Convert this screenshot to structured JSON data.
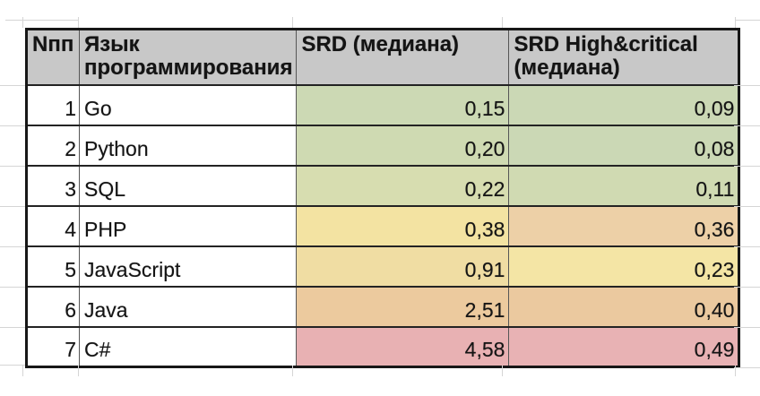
{
  "colors": {
    "header_bg": "#c8c8c8",
    "text": "#141414",
    "border_dark": "#171717",
    "border_inner_vertical": "#565656",
    "grid_faint": "#d5d5d5",
    "scale_green": "#ccd9b4",
    "scale_yellow": "#f3e3a2",
    "scale_orange": "#ecca9e",
    "scale_red": "#e8b1b3"
  },
  "table": {
    "columns": [
      {
        "label": "Nпп"
      },
      {
        "label": "Язык программирования"
      },
      {
        "label": "SRD (медиана)"
      },
      {
        "label": "SRD High&critical (медиана)"
      }
    ],
    "rows": [
      {
        "num": "1",
        "language": "Go",
        "srd": "0,15",
        "srd_color": "#ccd9b4",
        "srd_hc": "0,09",
        "srd_hc_color": "#cbd8b5"
      },
      {
        "num": "2",
        "language": "Python",
        "srd": "0,20",
        "srd_color": "#cfdab2",
        "srd_hc": "0,08",
        "srd_hc_color": "#cbd8b5"
      },
      {
        "num": "3",
        "language": "SQL",
        "srd": "0,22",
        "srd_color": "#d7ddb0",
        "srd_hc": "0,11",
        "srd_hc_color": "#d0dab2"
      },
      {
        "num": "4",
        "language": "PHP",
        "srd": "0,38",
        "srd_color": "#f3e3a2",
        "srd_hc": "0,36",
        "srd_hc_color": "#edd0a7"
      },
      {
        "num": "5",
        "language": "JavaScript",
        "srd": "0,91",
        "srd_color": "#f0dda3",
        "srd_hc": "0,23",
        "srd_hc_color": "#f4e5a5"
      },
      {
        "num": "6",
        "language": "Java",
        "srd": "2,51",
        "srd_color": "#ecca9e",
        "srd_hc": "0,40",
        "srd_hc_color": "#ebc99f"
      },
      {
        "num": "7",
        "language": "C#",
        "srd": "4,58",
        "srd_color": "#e8b1b3",
        "srd_hc": "0,49",
        "srd_hc_color": "#e8b2b4"
      }
    ]
  }
}
